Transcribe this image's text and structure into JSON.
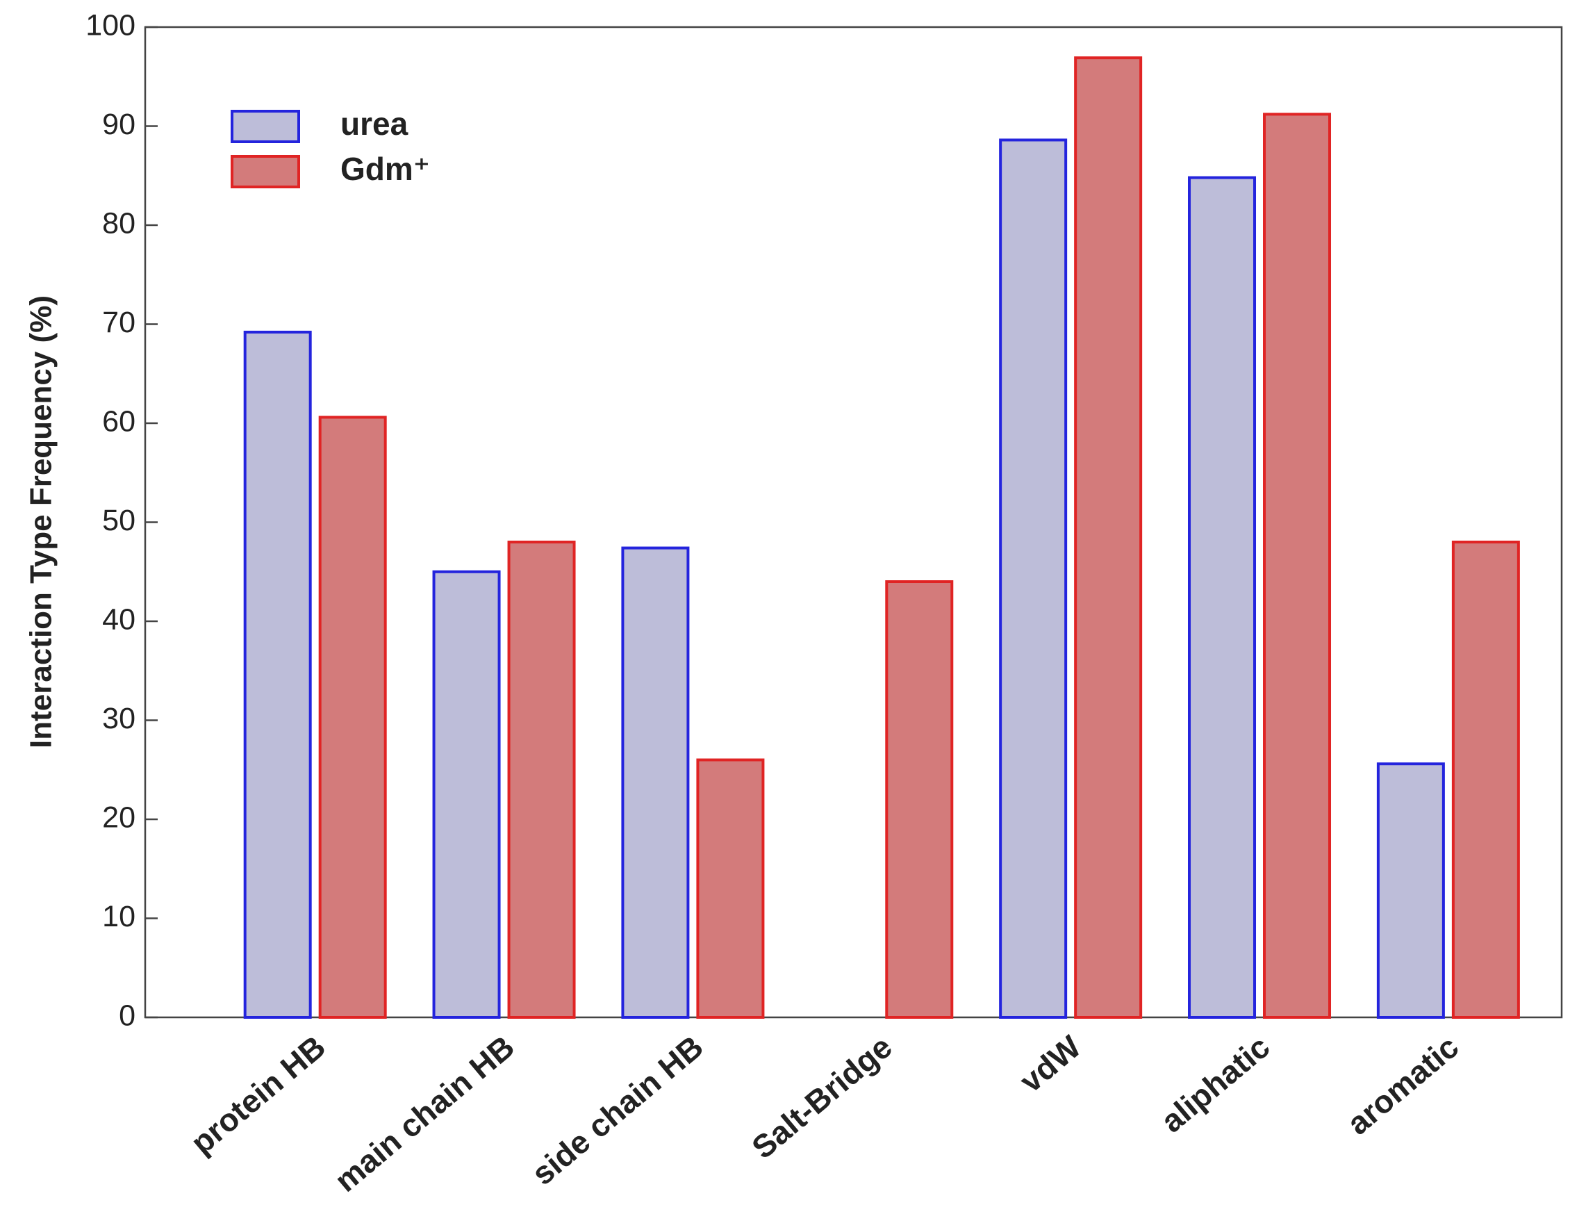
{
  "chart_data": {
    "type": "bar",
    "ylabel": "Interaction Type Frequency (%)",
    "categories": [
      "protein HB",
      "main chain HB",
      "side chain HB",
      "Salt-Bridge",
      "vdW",
      "aliphatic",
      "aromatic"
    ],
    "series": [
      {
        "name": "urea",
        "color": "#bdbdd9",
        "edgecolor": "#2424dd",
        "values": [
          69.2,
          45,
          47.4,
          null,
          88.6,
          84.8,
          25.6
        ]
      },
      {
        "name": "Gdm⁺",
        "color": "#d37b7b",
        "edgecolor": "#e02424",
        "values": [
          60.6,
          48,
          26,
          44,
          96.9,
          91.2,
          48
        ]
      }
    ],
    "ylim": [
      0,
      100
    ],
    "yticks": [
      0,
      10,
      20,
      30,
      40,
      50,
      60,
      70,
      80,
      90,
      100
    ],
    "legend": "upper left"
  }
}
